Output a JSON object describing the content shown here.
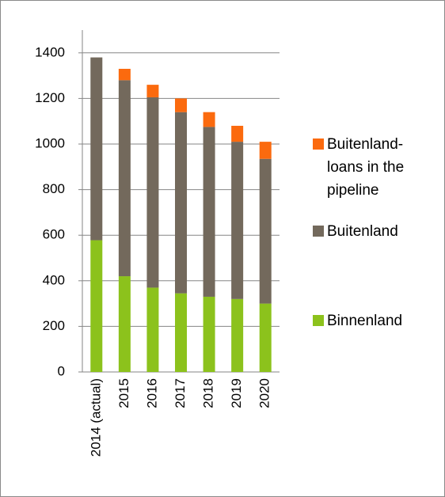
{
  "chart_data": {
    "type": "stacked_bar",
    "categories": [
      "2014 (actual)",
      "2015",
      "2016",
      "2017",
      "2018",
      "2019",
      "2020"
    ],
    "series": [
      {
        "name": "Binnenland",
        "color": "#8cc21c",
        "values": [
          578,
          420,
          370,
          345,
          330,
          320,
          300
        ]
      },
      {
        "name": "Buitenland",
        "color": "#73695c",
        "values": [
          802,
          860,
          835,
          795,
          745,
          690,
          635
        ]
      },
      {
        "name": "Buitenland-loans in the pipeline",
        "color": "#fb6a0e",
        "values": [
          0,
          50,
          55,
          60,
          65,
          70,
          75
        ]
      }
    ],
    "ylim": [
      0,
      1500
    ],
    "yticks": [
      0,
      200,
      400,
      600,
      800,
      1000,
      1200,
      1400
    ],
    "grid": true,
    "legend": "right"
  }
}
